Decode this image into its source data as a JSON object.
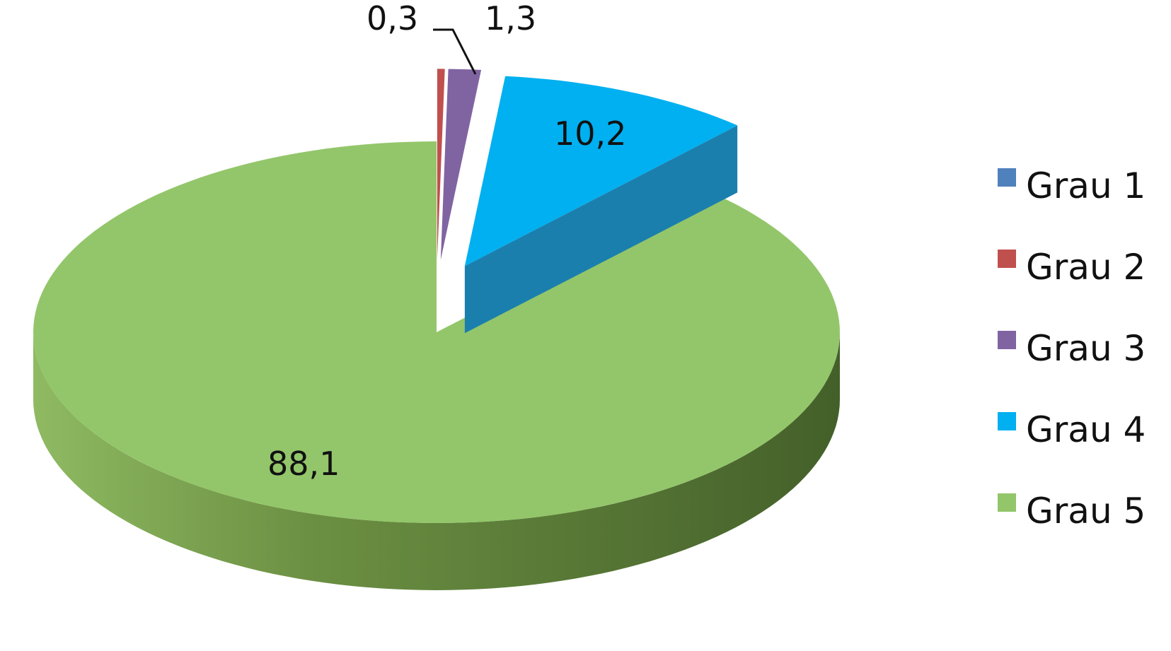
{
  "chart_data": {
    "type": "pie",
    "style": "3d-exploded",
    "title": "",
    "categories": [
      "Grau 1",
      "Grau 2",
      "Grau 3",
      "Grau 4",
      "Grau 5"
    ],
    "values": [
      0,
      0.3,
      1.3,
      10.2,
      88.1
    ],
    "data_labels": [
      "",
      "0,3",
      "1,3",
      "10,2",
      "88,1"
    ],
    "colors": [
      "#4f81bd",
      "#c0504d",
      "#8064a2",
      "#00b0f0",
      "#93c66a"
    ],
    "side_colors": [
      "#3a6496",
      "#983b39",
      "#5f4a7d",
      "#1b7fae",
      "#4e6e2f"
    ],
    "exploded": [
      true,
      true,
      true,
      true,
      false
    ],
    "legend_position": "right"
  }
}
